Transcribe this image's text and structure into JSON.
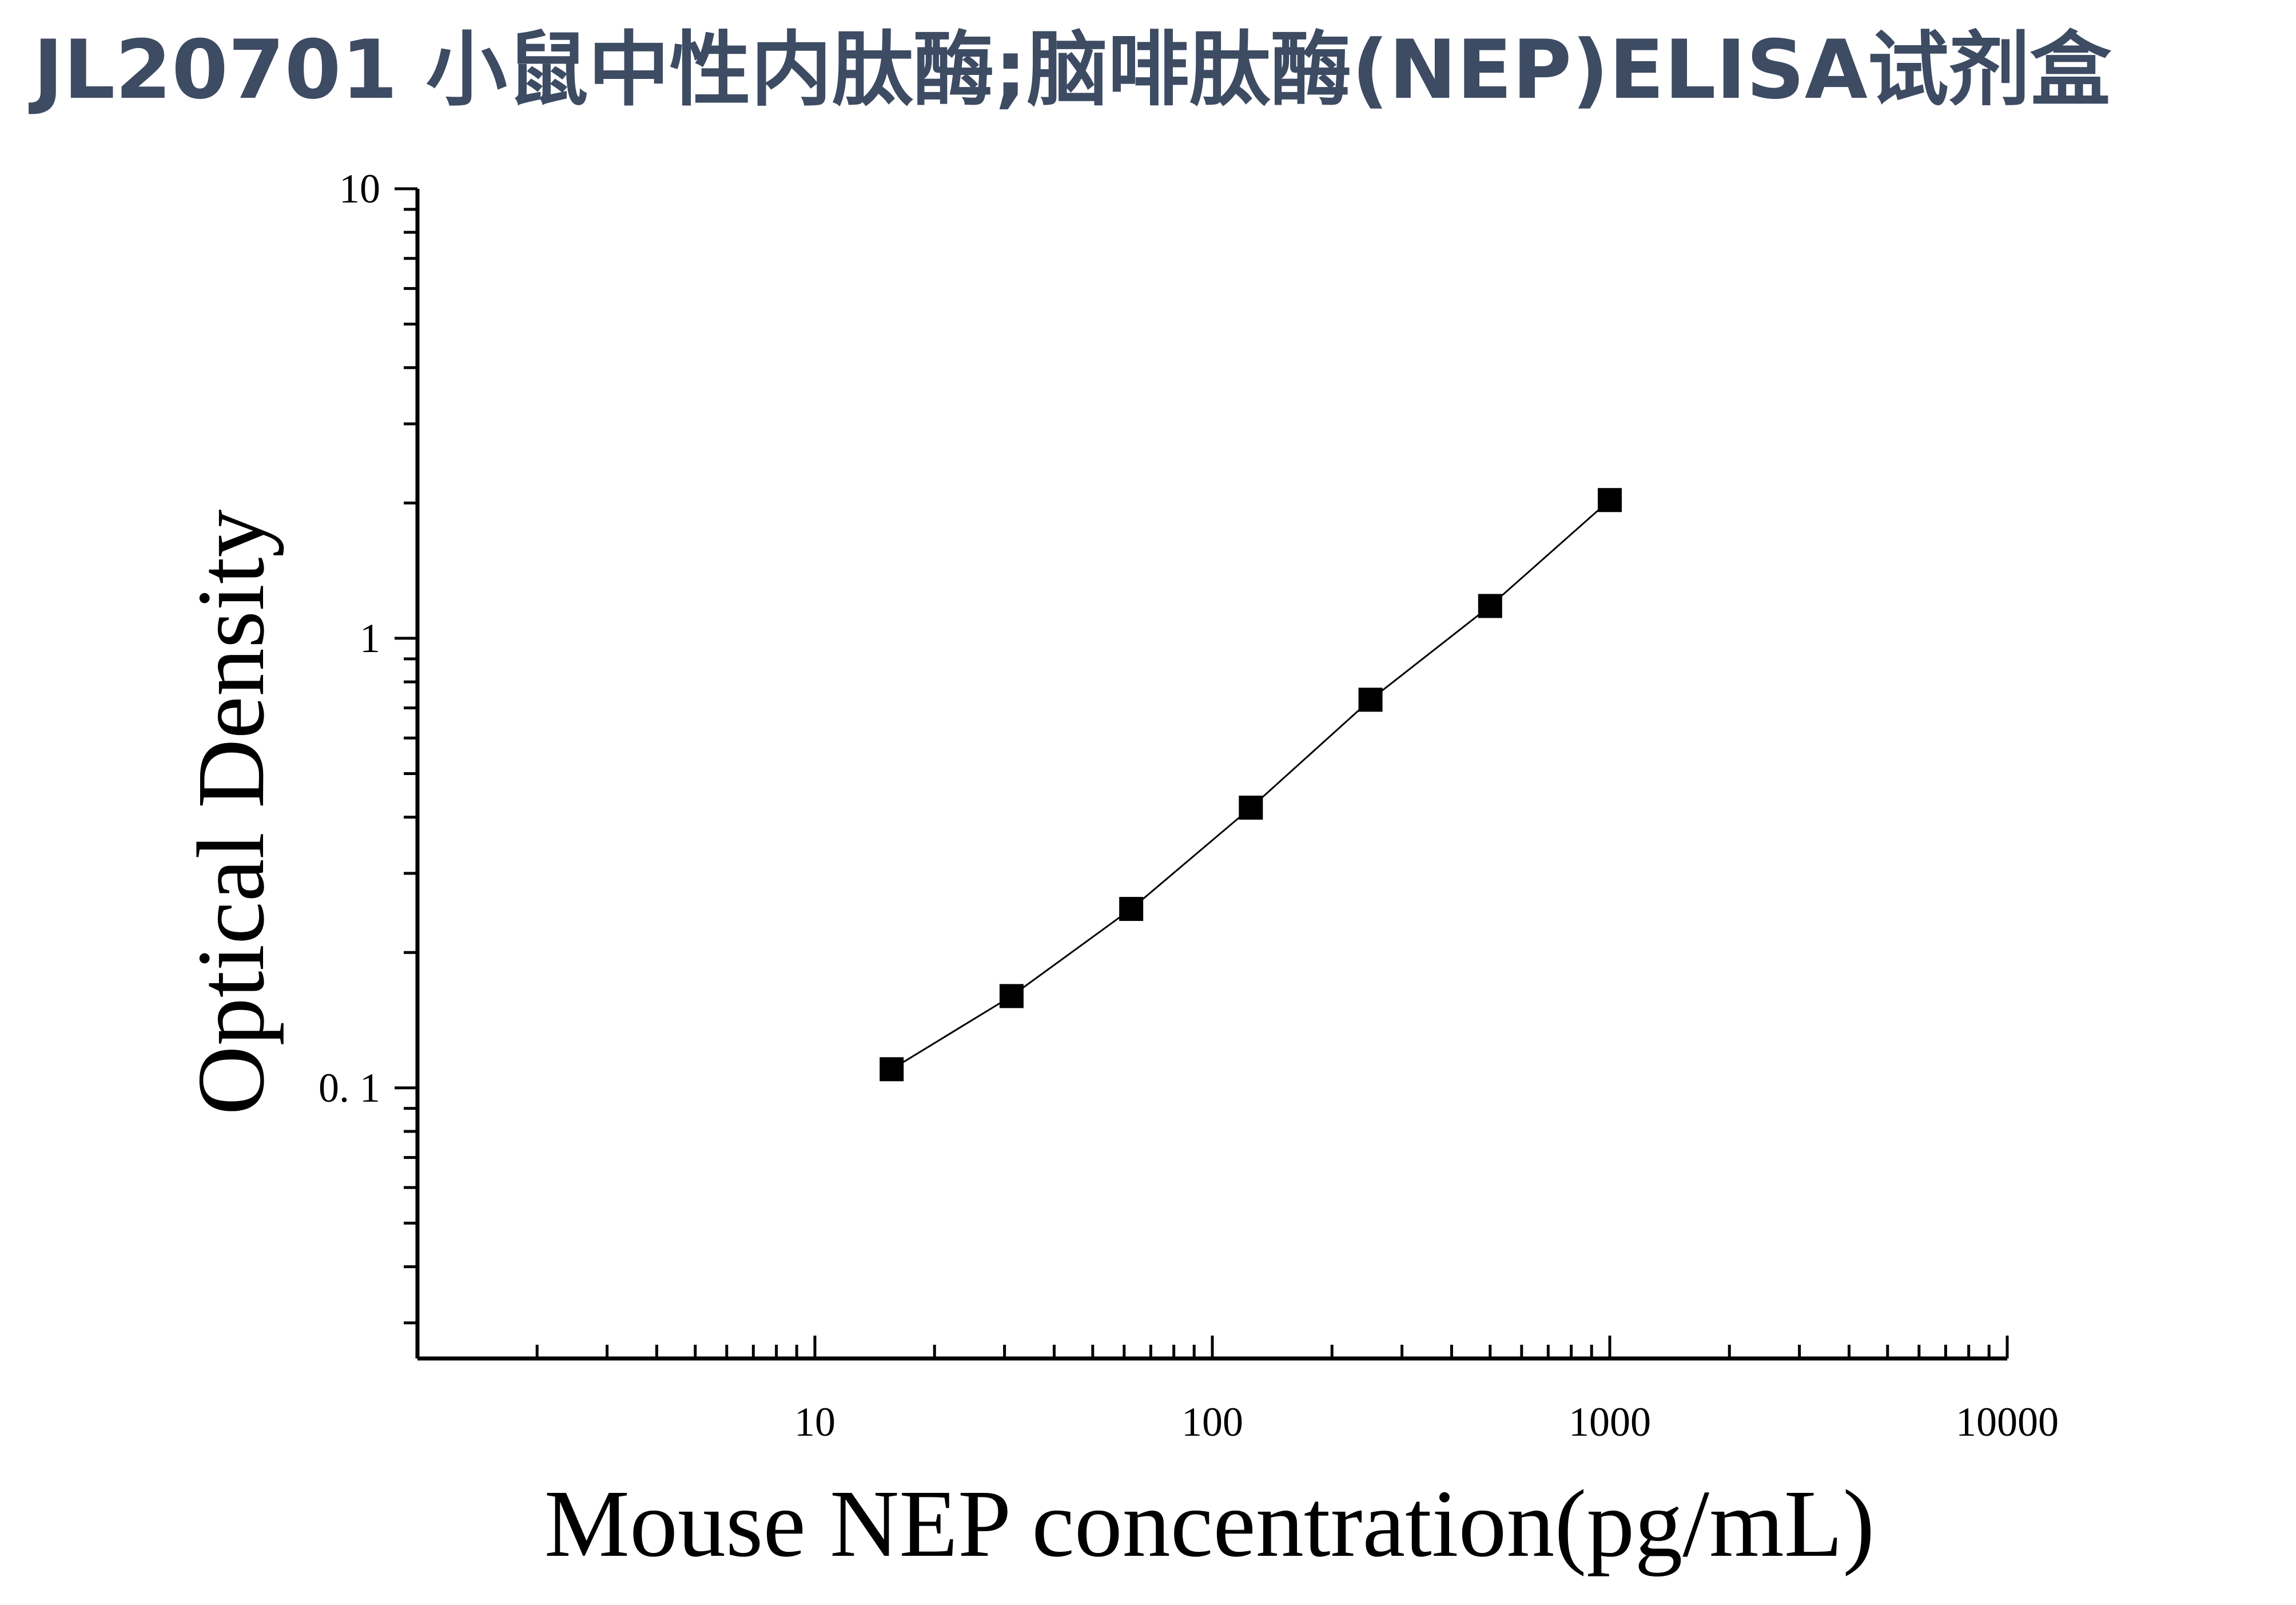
{
  "title": "JL20701 小鼠中性内肽酶;脑啡肽酶(NEP)ELISA试剂盒",
  "chart_data": {
    "type": "scatter",
    "title": "JL20701 小鼠中性内肽酶;脑啡肽酶(NEP)ELISA试剂盒",
    "xlabel": "Mouse NEP concentration(pg/mL)",
    "ylabel": "Optical Density",
    "x_scale": "log",
    "y_scale": "log",
    "xlim": [
      1,
      10000
    ],
    "ylim": [
      0.025,
      10
    ],
    "x_ticks": [
      10,
      100,
      1000,
      10000
    ],
    "x_tick_labels": [
      "10",
      "100",
      "1000",
      "10000"
    ],
    "y_ticks": [
      0.1,
      1,
      10
    ],
    "y_tick_labels": [
      "0. 1",
      "1",
      "10"
    ],
    "grid": false,
    "legend": "none",
    "marker": "square",
    "color": "#000000",
    "series": [
      {
        "x": [
          15.6,
          31.25,
          62.5,
          125,
          250,
          500,
          1000
        ],
        "y": [
          0.11,
          0.16,
          0.25,
          0.42,
          0.73,
          1.18,
          2.03
        ],
        "fit_line": true
      }
    ]
  }
}
